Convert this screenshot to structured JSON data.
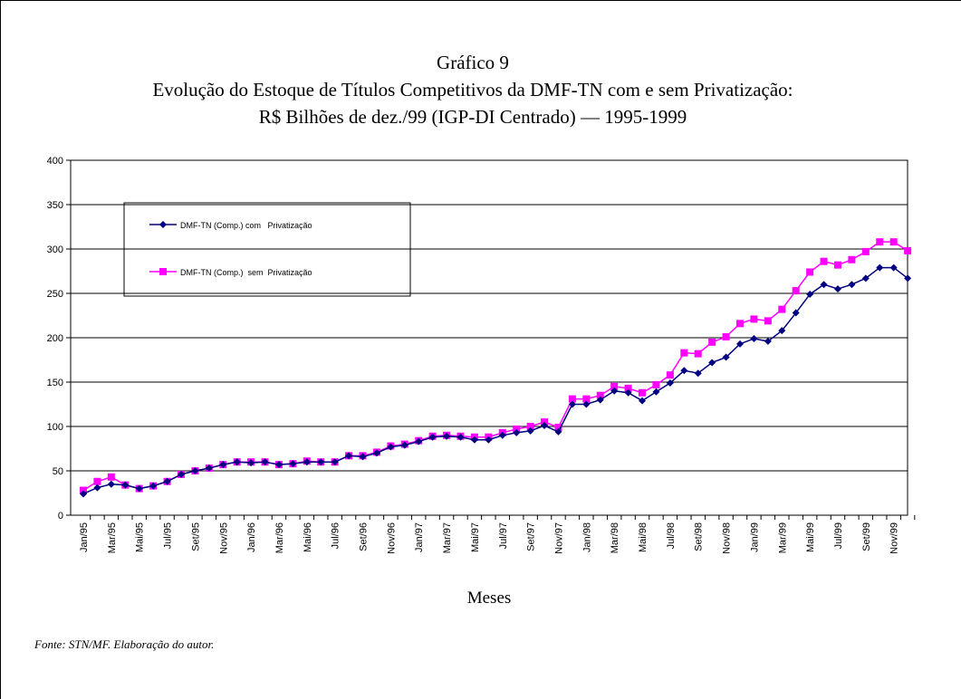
{
  "chart_data": {
    "type": "line",
    "title": "Gráfico 9",
    "subtitle": [
      "Evolução do Estoque de Títulos Competitivos da DMF-TN com e sem Privatização:",
      "R$ Bilhões de dez./99 (IGP-DI Centrado) — 1995-1999"
    ],
    "x_label": "Meses",
    "note": "Fonte: STN/MF. Elaboração do autor.",
    "categories": [
      "Jan/95",
      null,
      "Mar/95",
      null,
      "Mai/95",
      null,
      "Jul/95",
      null,
      "Set/95",
      null,
      "Nov/95",
      null,
      "Jan/96",
      null,
      "Mar/96",
      null,
      "Mai/96",
      null,
      "Jul/96",
      null,
      "Set/96",
      null,
      "Nov/96",
      null,
      "Jan/97",
      null,
      "Mar/97",
      null,
      "Mai/97",
      null,
      "Jul/97",
      null,
      "Set/97",
      null,
      "Nov/97",
      null,
      "Jan/98",
      null,
      "Mar/98",
      null,
      "Mai/98",
      null,
      "Jul/98",
      null,
      "Set/98",
      null,
      "Nov/98",
      null,
      "Jan/99",
      null,
      "Mar/99",
      null,
      "Mai/99",
      null,
      "Jul/99",
      null,
      "Set/99",
      null,
      "Nov/99",
      null
    ],
    "series": [
      {
        "name": "DMF-TN (Comp.) com   Privatização",
        "color": "#000080",
        "marker": "diamond",
        "values": [
          24,
          31,
          35,
          34,
          30,
          33,
          38,
          46,
          50,
          53,
          57,
          60,
          59,
          60,
          57,
          58,
          60,
          60,
          60,
          67,
          66,
          70,
          77,
          79,
          83,
          88,
          89,
          88,
          85,
          85,
          90,
          93,
          95,
          101,
          94,
          125,
          125,
          130,
          140,
          138,
          129,
          139,
          149,
          163,
          160,
          172,
          178,
          193,
          199,
          196,
          208,
          228,
          249,
          260,
          255,
          260,
          267,
          279,
          279,
          267
        ]
      },
      {
        "name": "DMF-TN (Comp.)  sem  Privatização",
        "color": "#ff00ff",
        "marker": "square",
        "values": [
          28,
          38,
          43,
          34,
          30,
          33,
          38,
          46,
          50,
          53,
          57,
          60,
          60,
          60,
          57,
          58,
          61,
          60,
          60,
          67,
          67,
          71,
          78,
          80,
          84,
          89,
          90,
          89,
          88,
          88,
          93,
          97,
          100,
          105,
          99,
          131,
          131,
          135,
          145,
          143,
          138,
          147,
          158,
          183,
          182,
          195,
          201,
          216,
          221,
          219,
          232,
          253,
          274,
          286,
          282,
          288,
          297,
          308,
          308,
          298
        ]
      }
    ],
    "ylim": [
      0,
      400
    ],
    "yticks": [
      0,
      50,
      100,
      150,
      200,
      250,
      300,
      350,
      400
    ],
    "grid": true
  }
}
